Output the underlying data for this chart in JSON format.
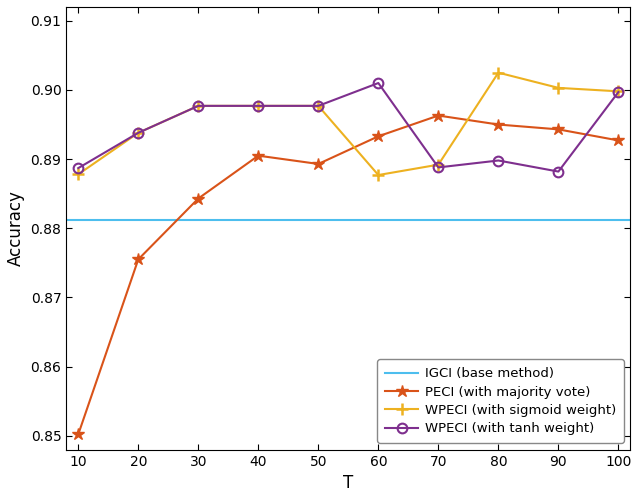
{
  "T": [
    10,
    20,
    30,
    40,
    50,
    60,
    70,
    80,
    90,
    100
  ],
  "IGCI_baseline": 0.8812,
  "PECI": [
    0.8502,
    0.8755,
    0.8843,
    0.8905,
    0.8893,
    0.8933,
    0.8963,
    0.895,
    0.8943,
    0.8927
  ],
  "WPECI_sigmoid": [
    0.8878,
    0.8938,
    0.8977,
    0.8977,
    0.8977,
    0.8877,
    0.8892,
    0.9025,
    0.9003,
    0.8998
  ],
  "WPECI_tanh": [
    0.8887,
    0.8938,
    0.8977,
    0.8977,
    0.8977,
    0.901,
    0.8888,
    0.8898,
    0.8882,
    0.8997
  ],
  "igci_color": "#4DBEEE",
  "peci_color": "#D95319",
  "wpeci_sigmoid_color": "#EDB120",
  "wpeci_tanh_color": "#7E2F8E",
  "xlabel": "T",
  "ylabel": "Accuracy",
  "ylim": [
    0.848,
    0.912
  ],
  "yticks": [
    0.85,
    0.86,
    0.87,
    0.88,
    0.89,
    0.9,
    0.91
  ],
  "xticks": [
    10,
    20,
    30,
    40,
    50,
    60,
    70,
    80,
    90,
    100
  ],
  "legend_labels": [
    "IGCI (base method)",
    "PECI (with majority vote)",
    "WPECI (with sigmoid weight)",
    "WPECI (with tanh weight)"
  ]
}
